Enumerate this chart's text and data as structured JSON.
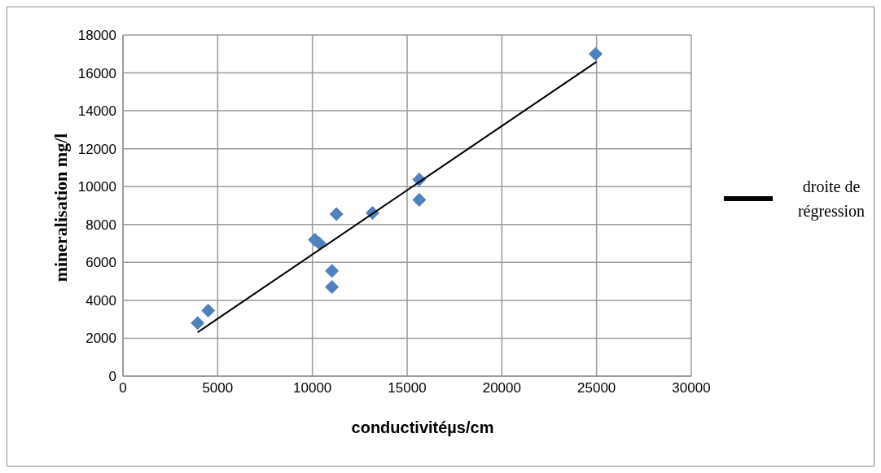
{
  "chart_data": {
    "type": "scatter",
    "xlabel": "conductivitéµs/cm",
    "ylabel": "mineralisation mg/l",
    "xlim": [
      0,
      30000
    ],
    "xticks": [
      0,
      5000,
      10000,
      15000,
      20000,
      25000,
      30000
    ],
    "ylim": [
      0,
      18000
    ],
    "yticks": [
      0,
      2000,
      4000,
      6000,
      8000,
      10000,
      12000,
      14000,
      16000,
      18000
    ],
    "grid": true,
    "legend": "right",
    "marker": "diamond",
    "series": [
      {
        "color": "#4f81bd",
        "x": [
          3940,
          4500,
          10130,
          10370,
          11270,
          11030,
          11030,
          13170,
          15640,
          15640,
          24950
        ],
        "values": [
          2800,
          3460,
          7200,
          7000,
          8550,
          5550,
          4700,
          8610,
          10370,
          9300,
          17000
        ]
      },
      {
        "type": "line",
        "marker": "none",
        "name": "droite de régression",
        "color": "#000000",
        "x": [
          3940,
          25000
        ],
        "values": [
          2310,
          16590
        ]
      }
    ]
  }
}
